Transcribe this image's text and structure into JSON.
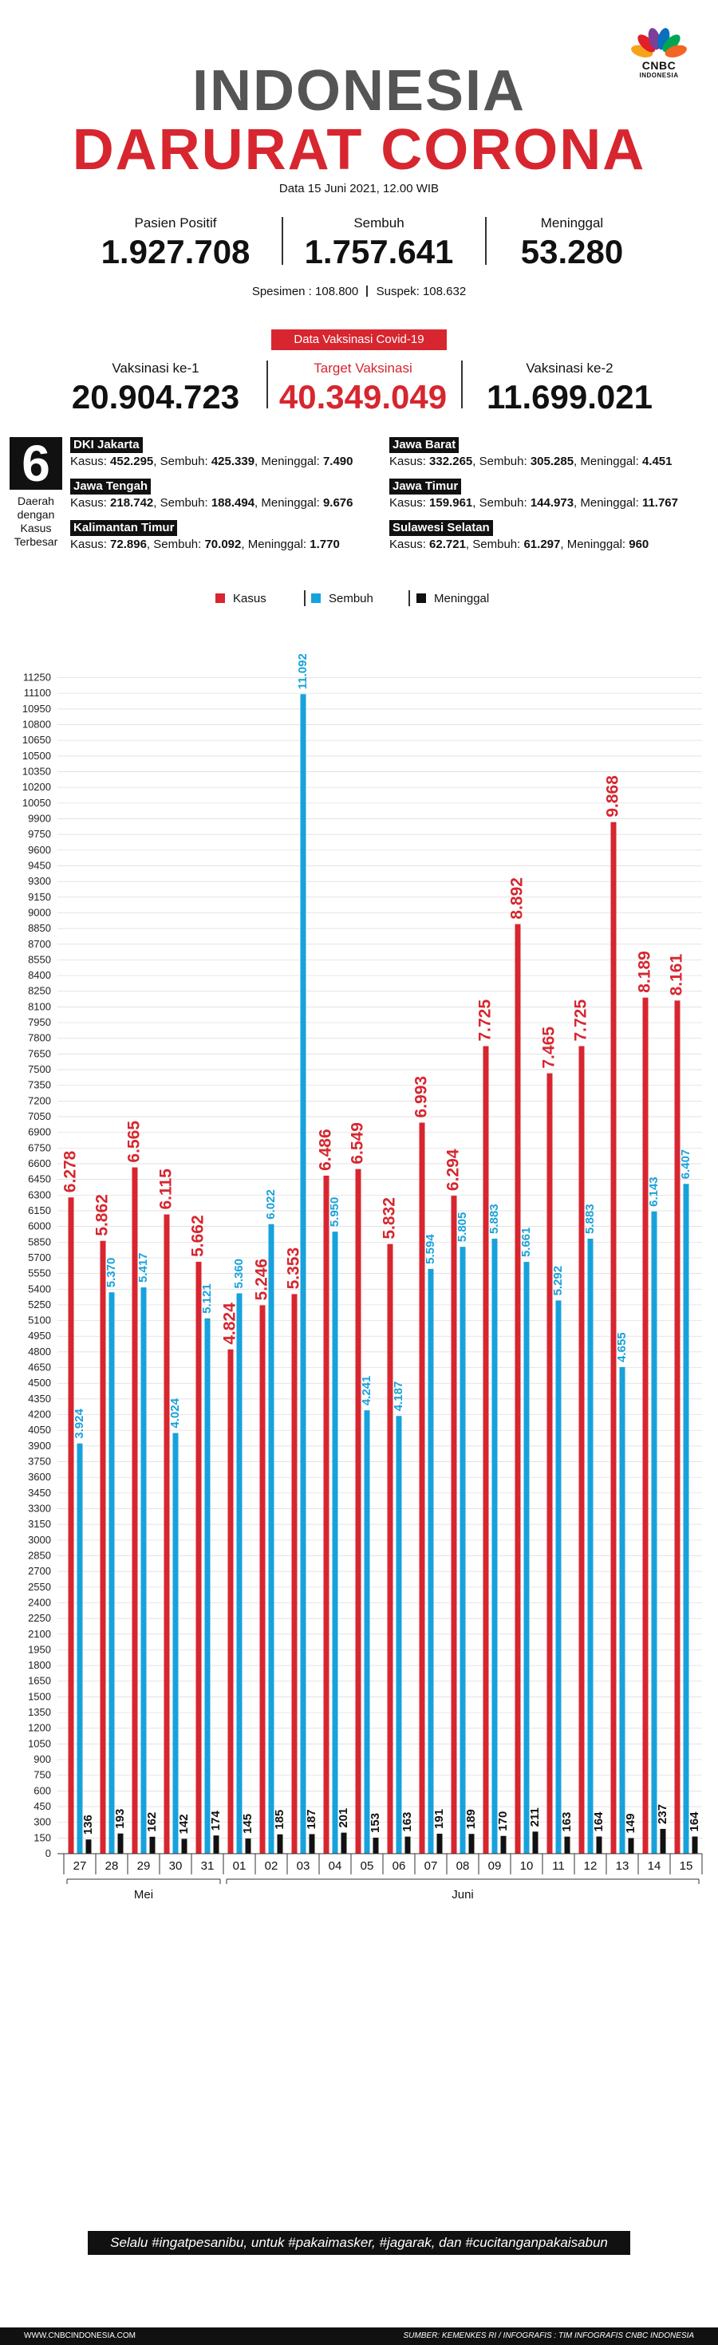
{
  "brand": {
    "name": "CNBC",
    "sub": "INDONESIA",
    "colors": [
      "#f7a21b",
      "#e11f26",
      "#7d3f98",
      "#0a6fbe",
      "#00a651",
      "#f26522"
    ]
  },
  "header": {
    "title_line1": "INDONESIA",
    "title_line2": "DARURAT CORONA",
    "date": "Data 15 Juni 2021, 12.00 WIB"
  },
  "stats": [
    {
      "label": "Pasien Positif",
      "value": "1.927.708"
    },
    {
      "label": "Sembuh",
      "value": "1.757.641"
    },
    {
      "label": "Meninggal",
      "value": "53.280"
    }
  ],
  "specimen": {
    "spesimen": "Spesimen : 108.800",
    "suspek": "Suspek: 108.632"
  },
  "vaksinasi": {
    "badge": "Data Vaksinasi Covid-19",
    "items": [
      {
        "label": "Vaksinasi ke-1",
        "value": "20.904.723"
      },
      {
        "label": "Target Vaksinasi",
        "value": "40.349.049"
      },
      {
        "label": "Vaksinasi ke-2",
        "value": "11.699.021"
      }
    ]
  },
  "regions": {
    "count": "6",
    "caption_lines": [
      "Daerah",
      "dengan",
      "Kasus",
      "Terbesar"
    ],
    "items": [
      {
        "name": "DKI Jakarta",
        "kasus": "452.295",
        "sembuh": "425.339",
        "meninggal": "7.490"
      },
      {
        "name": "Jawa Barat",
        "kasus": "332.265",
        "sembuh": "305.285",
        "meninggal": "4.451"
      },
      {
        "name": "Jawa Tengah",
        "kasus": "218.742",
        "sembuh": "188.494",
        "meninggal": "9.676"
      },
      {
        "name": "Jawa Timur",
        "kasus": "159.961",
        "sembuh": "144.973",
        "meninggal": "11.767"
      },
      {
        "name": "Kalimantan Timur",
        "kasus": "72.896",
        "sembuh": "70.092",
        "meninggal": "1.770"
      },
      {
        "name": "Sulawesi Selatan",
        "kasus": "62.721",
        "sembuh": "61.297",
        "meninggal": "960"
      }
    ],
    "labels": {
      "kasus": "Kasus: ",
      "sembuh": ", Sembuh: ",
      "meninggal": ", Meninggal: "
    }
  },
  "chart_data": {
    "type": "bar",
    "legend_position": "top",
    "categories": [
      "27",
      "28",
      "29",
      "30",
      "31",
      "01",
      "02",
      "03",
      "04",
      "05",
      "06",
      "07",
      "08",
      "09",
      "10",
      "11",
      "12",
      "13",
      "14",
      "15"
    ],
    "month_labels": [
      {
        "label": "Mei",
        "start": 0,
        "end": 4
      },
      {
        "label": "Juni",
        "start": 5,
        "end": 19
      }
    ],
    "series": [
      {
        "name": "Kasus",
        "color": "#d7262f",
        "values": [
          6278,
          5862,
          6565,
          6115,
          5662,
          4824,
          5246,
          5353,
          6486,
          6549,
          5832,
          6993,
          6294,
          7725,
          8892,
          7465,
          7725,
          9868,
          8189,
          8161
        ]
      },
      {
        "name": "Sembuh",
        "color": "#17a2dc",
        "values": [
          3924,
          5370,
          5417,
          4024,
          5121,
          5360,
          6022,
          11092,
          5950,
          4241,
          4187,
          5594,
          5805,
          5883,
          5661,
          5292,
          5883,
          4655,
          6143,
          6407
        ]
      },
      {
        "name": "Meninggal",
        "color": "#111111",
        "values": [
          136,
          193,
          162,
          142,
          174,
          145,
          185,
          187,
          201,
          153,
          163,
          191,
          189,
          170,
          211,
          163,
          164,
          149,
          237,
          164
        ]
      }
    ],
    "ylim": [
      0,
      11300
    ],
    "ytick_step": 150,
    "grid": true
  },
  "footer": {
    "slogan": "Selalu #ingatpesanibu, untuk #pakaimasker, #jagarak, dan #cucitanganpakaisabun",
    "website": "WWW.CNBCINDONESIA.COM",
    "source": "SUMBER: KEMENKES RI / INFOGRAFIS : TIM INFOGRAFIS CNBC INDONESIA"
  }
}
